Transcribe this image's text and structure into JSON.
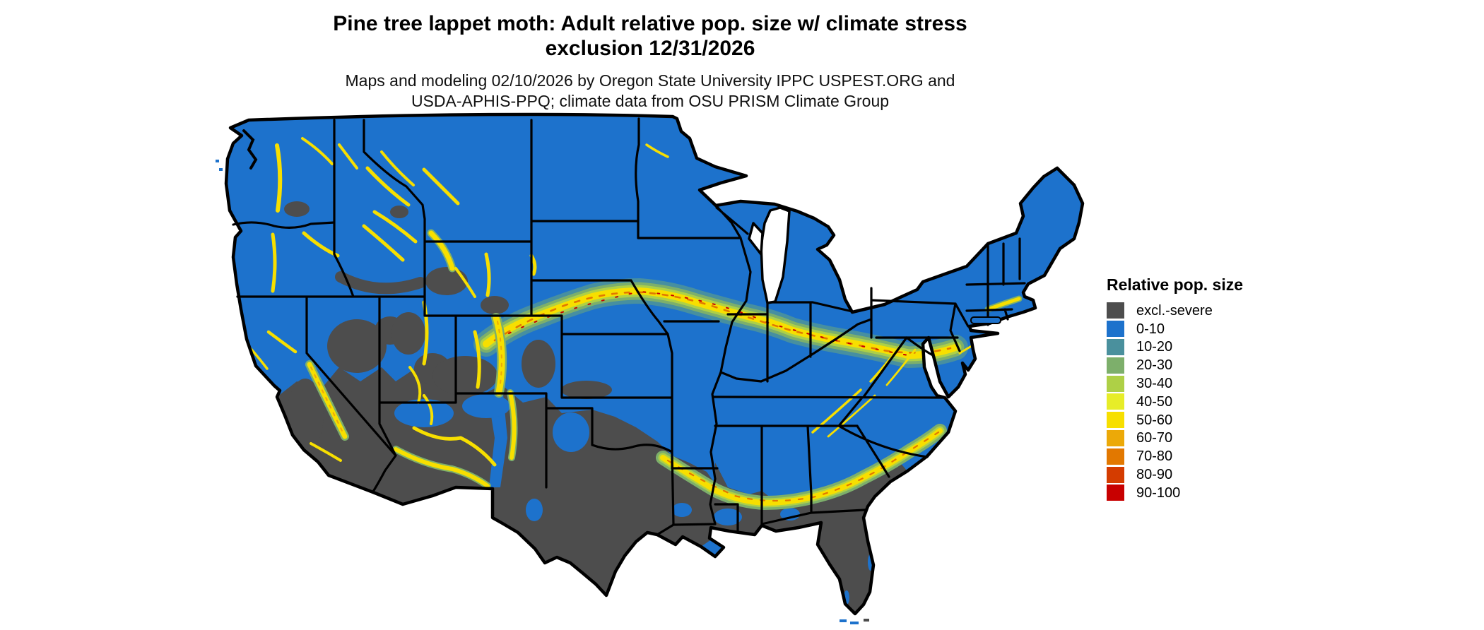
{
  "header": {
    "title_line1": "Pine tree lappet moth: Adult relative pop. size w/ climate stress",
    "title_line2": "exclusion 12/31/2026",
    "subtitle_line1": "Maps and modeling 02/10/2026 by Oregon State University IPPC USPEST.ORG and",
    "subtitle_line2": "USDA-APHIS-PPQ; climate data from OSU PRISM Climate Group"
  },
  "legend": {
    "title": "Relative pop. size",
    "items": [
      {
        "label": "excl.-severe",
        "color_key": "exclusion"
      },
      {
        "label": "0-10",
        "color_key": "r0_10"
      },
      {
        "label": "10-20",
        "color_key": "r10_20"
      },
      {
        "label": "20-30",
        "color_key": "r20_30"
      },
      {
        "label": "30-40",
        "color_key": "r30_40"
      },
      {
        "label": "40-50",
        "color_key": "r40_50"
      },
      {
        "label": "50-60",
        "color_key": "r50_60"
      },
      {
        "label": "60-70",
        "color_key": "r60_70"
      },
      {
        "label": "70-80",
        "color_key": "r70_80"
      },
      {
        "label": "80-90",
        "color_key": "r80_90"
      },
      {
        "label": "90-100",
        "color_key": "r90_100"
      }
    ]
  },
  "colors": {
    "exclusion": "#4d4d4d",
    "r0_10": "#1d72cc",
    "r10_20": "#4a909d",
    "r20_30": "#7daf6b",
    "r30_40": "#aed046",
    "r40_50": "#e7ed28",
    "r50_60": "#f7df00",
    "r60_70": "#eca908",
    "r70_80": "#e27800",
    "r80_90": "#d43c00",
    "r90_100": "#c80000",
    "border": "#000000",
    "water": "#ffffff"
  }
}
